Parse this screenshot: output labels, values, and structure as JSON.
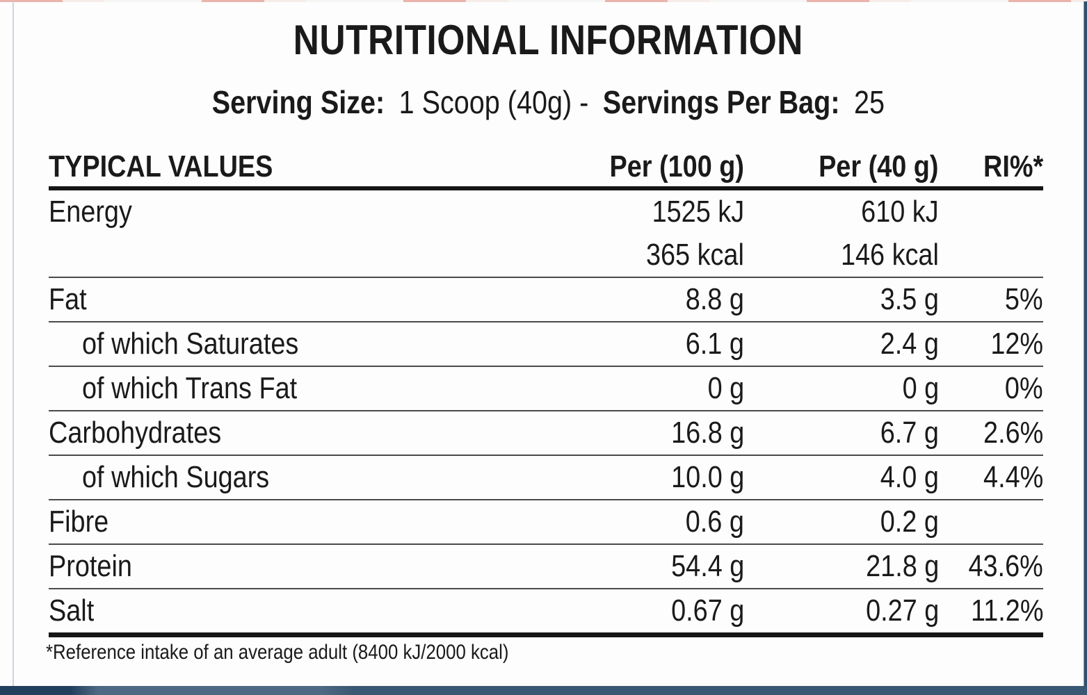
{
  "title": "NUTRITIONAL INFORMATION",
  "serving": {
    "size_label": "Serving Size:",
    "size_value": "1 Scoop (40g) -",
    "per_bag_label": "Servings Per Bag:",
    "per_bag_value": "25"
  },
  "table": {
    "headers": {
      "name": "TYPICAL VALUES",
      "per100": "Per (100 g)",
      "per40": "Per (40 g)",
      "ri": "RI%*"
    },
    "rows": [
      {
        "label": "Energy",
        "per100": "1525 kJ",
        "per40": "610 kJ",
        "ri": ""
      },
      {
        "label": "",
        "per100": "365 kcal",
        "per40": "146 kcal",
        "ri": ""
      },
      {
        "label": "Fat",
        "per100": "8.8 g",
        "per40": "3.5 g",
        "ri": "5%"
      },
      {
        "label": "of which Saturates",
        "per100": "6.1 g",
        "per40": "2.4 g",
        "ri": "12%"
      },
      {
        "label": "of which Trans Fat",
        "per100": "0 g",
        "per40": "0 g",
        "ri": "0%"
      },
      {
        "label": "Carbohydrates",
        "per100": "16.8 g",
        "per40": "6.7 g",
        "ri": "2.6%"
      },
      {
        "label": "of which Sugars",
        "per100": "10.0 g",
        "per40": "4.0 g",
        "ri": "4.4%"
      },
      {
        "label": "Fibre",
        "per100": "0.6 g",
        "per40": "0.2 g",
        "ri": ""
      },
      {
        "label": "Protein",
        "per100": "54.4 g",
        "per40": "21.8 g",
        "ri": "43.6%"
      },
      {
        "label": "Salt",
        "per100": "0.67 g",
        "per40": "0.27 g",
        "ri": "11.2%"
      }
    ]
  },
  "footnote": "*Reference intake of an average adult (8400 kJ/2000 kcal)",
  "colors": {
    "text": "#1a1a1a",
    "frame_navy": "#203d5b",
    "frame_steel": "#54718c",
    "frame_slate": "#3a5873",
    "frame_pink": "#eab3ab",
    "rule_thin": "#4a4a4a",
    "rule_thick": "#161616"
  }
}
